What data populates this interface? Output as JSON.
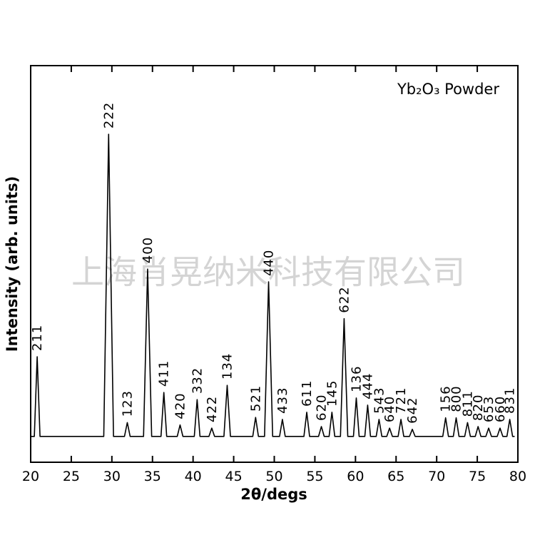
{
  "chart_data": {
    "type": "line",
    "title": "Yb₂O₃ Powder",
    "watermark": "上海肖晃纳米科技有限公司",
    "x_label": "2θ/degs",
    "y_label": "Intensity (arb. units)",
    "xlim": [
      20,
      80
    ],
    "xticks": [
      20,
      25,
      30,
      35,
      40,
      45,
      50,
      55,
      60,
      65,
      70,
      75,
      80
    ],
    "ylim": [
      0,
      100
    ],
    "color": "#000000",
    "x": [
      20,
      20.45,
      20.8,
      21.15,
      29.0,
      29.6,
      30.2,
      31.55,
      31.9,
      32.25,
      33.9,
      34.4,
      34.9,
      36.05,
      36.4,
      36.75,
      38.05,
      38.4,
      38.75,
      40.15,
      40.5,
      40.85,
      41.95,
      42.3,
      42.65,
      43.8,
      44.2,
      44.6,
      47.35,
      47.7,
      48.05,
      48.8,
      49.3,
      49.8,
      50.65,
      51.0,
      51.35,
      53.65,
      54.0,
      54.35,
      55.45,
      55.8,
      56.15,
      56.75,
      57.1,
      57.45,
      58.15,
      58.6,
      59.05,
      59.75,
      60.1,
      60.45,
      61.15,
      61.5,
      61.85,
      62.55,
      62.9,
      63.25,
      63.85,
      64.2,
      64.55,
      65.25,
      65.6,
      65.95,
      66.65,
      67.0,
      67.35,
      70.75,
      71.1,
      71.45,
      72.05,
      72.4,
      72.75,
      73.45,
      73.8,
      74.15,
      74.75,
      75.1,
      75.45,
      76.05,
      76.4,
      76.75,
      77.45,
      77.8,
      78.15,
      78.65,
      79.0,
      79.35,
      79.6
    ],
    "values": [
      6.5,
      6.5,
      26.6,
      6.5,
      6.5,
      82.7,
      6.5,
      6.5,
      10,
      6.5,
      6.5,
      48.7,
      6.5,
      6.5,
      17.6,
      6.5,
      6.5,
      9.4,
      6.5,
      6.5,
      15.8,
      6.5,
      6.5,
      8.6,
      6.5,
      6.5,
      19.4,
      6.5,
      6.5,
      11.3,
      6.5,
      6.5,
      45.5,
      6.5,
      6.5,
      10.8,
      6.5,
      6.5,
      12.6,
      6.5,
      6.5,
      9,
      6.5,
      6.5,
      12.6,
      6.5,
      6.5,
      36.2,
      6.5,
      6.5,
      16.2,
      6.5,
      6.5,
      14.4,
      6.5,
      6.5,
      10.8,
      6.5,
      6.5,
      8.6,
      6.5,
      6.5,
      10.8,
      6.5,
      6.5,
      8.3,
      6.5,
      6.5,
      11.2,
      6.5,
      6.5,
      11.2,
      6.5,
      6.5,
      10,
      6.5,
      6.5,
      9,
      6.5,
      6.5,
      8.6,
      6.5,
      6.5,
      8.6,
      6.5,
      6.5,
      10.8,
      6.5,
      6.5
    ],
    "peak_labels": [
      "211",
      "222",
      "123",
      "400",
      "411",
      "420",
      "332",
      "422",
      "134",
      "521",
      "440",
      "433",
      "611",
      "620",
      "145",
      "622",
      "136",
      "444",
      "543",
      "640",
      "721",
      "642",
      "156",
      "800",
      "811",
      "820",
      "653",
      "660",
      "831"
    ]
  }
}
